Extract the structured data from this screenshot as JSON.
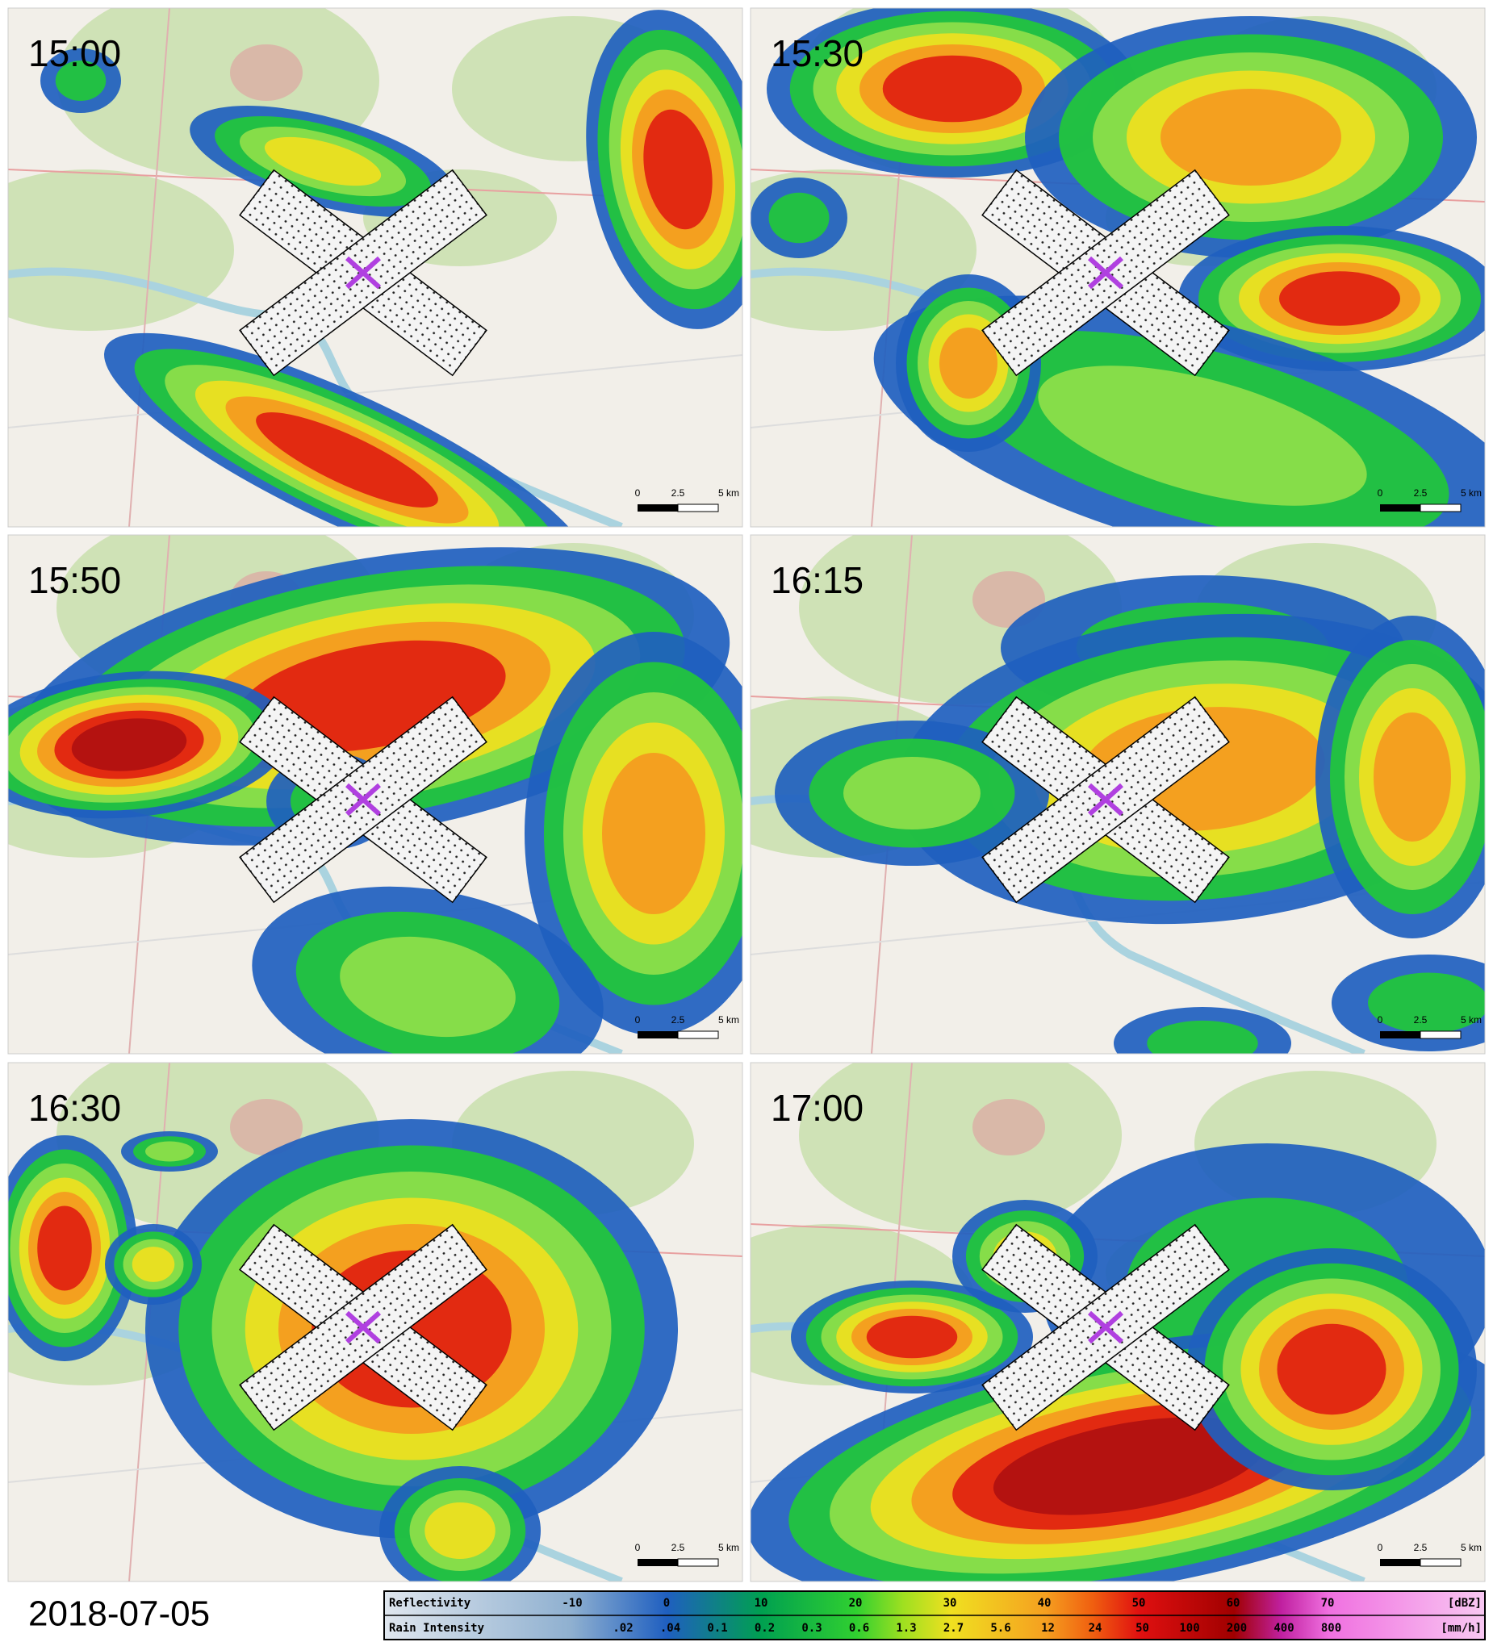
{
  "panels": [
    {
      "time": "15:00"
    },
    {
      "time": "15:30"
    },
    {
      "time": "15:50"
    },
    {
      "time": "16:15"
    },
    {
      "time": "16:30"
    },
    {
      "time": "17:00"
    }
  ],
  "scale_bar": {
    "labels": [
      "0",
      "2.5",
      "5 km"
    ]
  },
  "date": "2018-07-05",
  "legend": {
    "reflectivity": {
      "title": "Reflectivity",
      "ticks": [
        "-10",
        "0",
        "10",
        "20",
        "30",
        "40",
        "50",
        "60",
        "70"
      ],
      "unit": "[dBZ]"
    },
    "rain_intensity": {
      "title": "Rain Intensity",
      "ticks": [
        ".02",
        ".04",
        "0.1",
        "0.2",
        "0.3",
        "0.6",
        "1.3",
        "2.7",
        "5.6",
        "12",
        "24",
        "50",
        "100",
        "200",
        "400",
        "800"
      ],
      "unit": "[mm/h]"
    }
  }
}
